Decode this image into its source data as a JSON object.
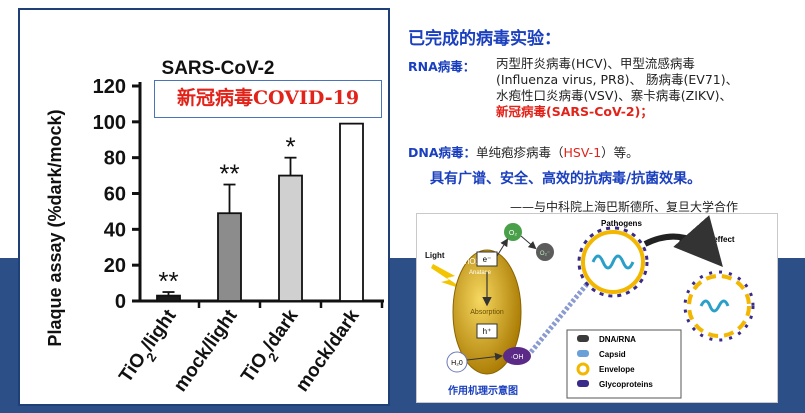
{
  "chart_data": {
    "type": "bar",
    "title": "SARS-CoV-2",
    "annotation": "新冠病毒COVID-19",
    "ylabel": "Plaque assay (%dark/mock)",
    "xlabel": "",
    "ylim": [
      0,
      120
    ],
    "yticks": [
      "0",
      "20",
      "40",
      "60",
      "80",
      "100",
      "120"
    ],
    "categories": [
      "TiO2/light",
      "mock/light",
      "TiO2/dark",
      "mock/dark"
    ],
    "values": [
      3,
      49,
      70,
      99
    ],
    "errors": [
      2,
      16,
      10,
      0
    ],
    "significance": [
      "**",
      "**",
      "*",
      ""
    ],
    "bar_colors": [
      "#1a1a1a",
      "#8c8c8c",
      "#d0d0d0",
      "#ffffff"
    ]
  },
  "info": {
    "title": "已完成的病毒实验：",
    "rna_label": "RNA病毒：",
    "rna_line1": "丙型肝炎病毒(HCV)、甲型流感病毒",
    "rna_line2": "(Influenza virus, PR8)、 肠病毒(EV71)、",
    "rna_line3": "水疱性口炎病毒(VSV)、寨卡病毒(ZIKV)、",
    "rna_line4": "新冠病毒(SARS-CoV-2)；",
    "dna_label": "DNA病毒：",
    "dna_text_a": "单纯疱疹病毒（",
    "dna_text_red": "HSV-1",
    "dna_text_b": "）等。",
    "highlight": "具有广谱、安全、高效的抗病毒/抗菌效果。",
    "collab": "——与中科院上海巴斯德所、复旦大学合作"
  },
  "diagram": {
    "light": "Light",
    "tio2": "TiO2",
    "anatase": "Anatase",
    "electron": "e⁻",
    "hole": "h⁺",
    "absorption": "Absorption",
    "o2": "O₂",
    "o2_radical": "O₂⁻",
    "water": "H₂0",
    "oh": "·OH",
    "pathogens": "Pathogens",
    "antiviral": "Antiviral effect",
    "legend": [
      "DNA/RNA",
      "Capsid",
      "Envelope",
      "Glycoproteins"
    ],
    "caption": "作用机理示意图",
    "colors": {
      "particle": "#c9a000",
      "hole": "#5b2a86",
      "o2": "#4aa04a",
      "envelope": "#f2b700",
      "glyco": "#3a2a8a"
    }
  }
}
